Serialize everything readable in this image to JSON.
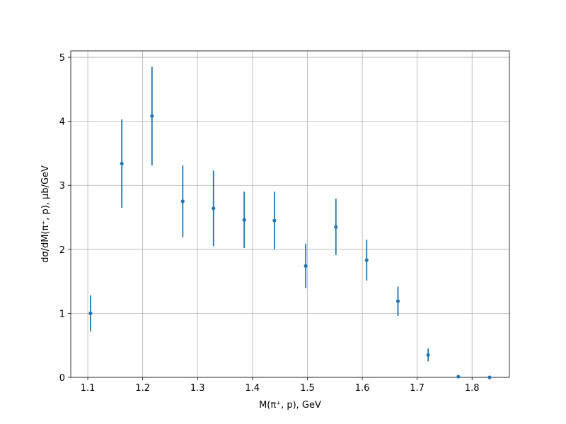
{
  "chart_data": {
    "type": "errorbar",
    "xlabel": "M(π⁺, p), GeV",
    "ylabel": "dσ/dM(π⁺, p), μb/GeV",
    "x": [
      1.105,
      1.162,
      1.217,
      1.273,
      1.329,
      1.385,
      1.44,
      1.497,
      1.552,
      1.608,
      1.665,
      1.72,
      1.775,
      1.832
    ],
    "values": [
      1.0,
      3.34,
      4.08,
      2.75,
      2.64,
      2.46,
      2.45,
      1.74,
      2.35,
      1.83,
      1.19,
      0.35,
      0.01,
      0.0
    ],
    "errors": [
      0.28,
      0.69,
      0.77,
      0.56,
      0.59,
      0.44,
      0.45,
      0.35,
      0.44,
      0.32,
      0.23,
      0.1,
      0.01,
      0.0
    ],
    "color": "#1f77b4",
    "xlim": [
      1.069,
      1.868
    ],
    "xticks": [
      1.1,
      1.2,
      1.3,
      1.4,
      1.5,
      1.6,
      1.7,
      1.8
    ],
    "ylim": [
      0,
      5.1
    ],
    "yticks": [
      0,
      1,
      2,
      3,
      4,
      5
    ],
    "grid": true
  }
}
